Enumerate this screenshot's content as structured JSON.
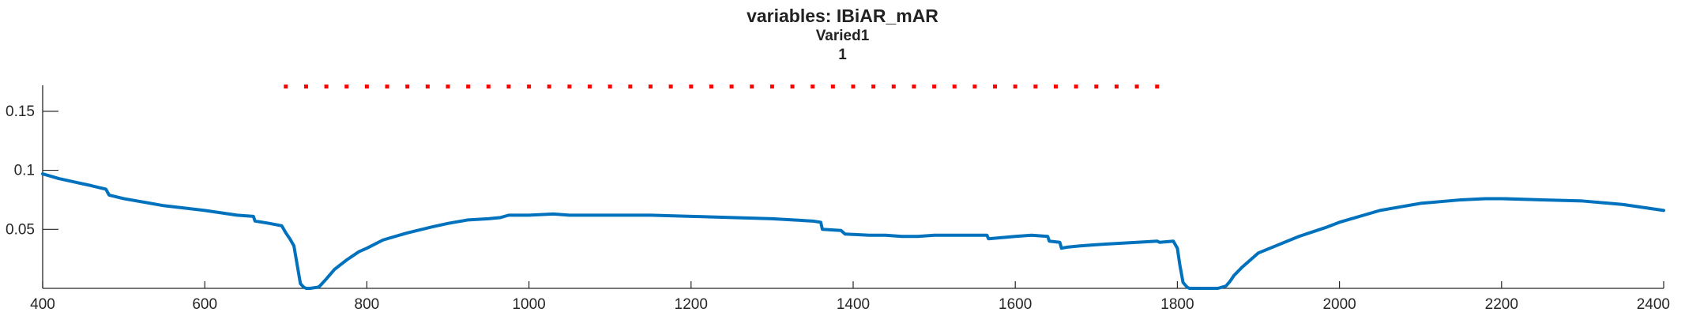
{
  "chart_data": {
    "type": "line",
    "title": "variables: IBiAR_mAR",
    "subtitle": "Varied1",
    "subtitle2": "1",
    "xlabel": "",
    "ylabel": "",
    "xlim": [
      400,
      2400
    ],
    "ylim": [
      0,
      0.172
    ],
    "xticks": [
      400,
      600,
      800,
      1000,
      1200,
      1400,
      1600,
      1800,
      2000,
      2200,
      2400
    ],
    "yticks": [
      0.05,
      0.1,
      0.15
    ],
    "ytick_labels": [
      "0.05",
      "0.1",
      "0.15"
    ],
    "grid": false,
    "colors": {
      "line": "#0072BD",
      "markers": "#FF0000",
      "axis": "#262626"
    },
    "series": [
      {
        "style": "line",
        "x": [
          400,
          420,
          440,
          460,
          478,
          482,
          500,
          550,
          600,
          640,
          660,
          662,
          680,
          695,
          700,
          705,
          710,
          712,
          718,
          722,
          725,
          730,
          740,
          742,
          750,
          760,
          775,
          790,
          800,
          820,
          850,
          880,
          900,
          925,
          950,
          965,
          975,
          1000,
          1030,
          1050,
          1100,
          1150,
          1200,
          1250,
          1300,
          1350,
          1360,
          1362,
          1385,
          1390,
          1420,
          1440,
          1460,
          1480,
          1500,
          1550,
          1565,
          1567,
          1600,
          1620,
          1640,
          1642,
          1655,
          1657,
          1665,
          1680,
          1700,
          1750,
          1775,
          1778,
          1795,
          1800,
          1803,
          1807,
          1812,
          1815,
          1830,
          1850,
          1860,
          1865,
          1870,
          1880,
          1900,
          1950,
          1985,
          2000,
          2050,
          2100,
          2150,
          2180,
          2200,
          2250,
          2300,
          2350,
          2400
        ],
        "y": [
          0.097,
          0.093,
          0.09,
          0.087,
          0.084,
          0.079,
          0.076,
          0.07,
          0.066,
          0.062,
          0.061,
          0.057,
          0.055,
          0.053,
          0.047,
          0.042,
          0.036,
          0.028,
          0.004,
          0.001,
          0.0,
          0.0,
          0.001,
          0.002,
          0.008,
          0.016,
          0.024,
          0.031,
          0.034,
          0.041,
          0.047,
          0.052,
          0.055,
          0.058,
          0.059,
          0.06,
          0.062,
          0.062,
          0.063,
          0.062,
          0.062,
          0.062,
          0.061,
          0.06,
          0.059,
          0.057,
          0.056,
          0.05,
          0.049,
          0.046,
          0.045,
          0.045,
          0.044,
          0.044,
          0.045,
          0.045,
          0.045,
          0.042,
          0.044,
          0.045,
          0.044,
          0.04,
          0.039,
          0.034,
          0.035,
          0.036,
          0.037,
          0.039,
          0.04,
          0.039,
          0.04,
          0.034,
          0.02,
          0.005,
          0.001,
          0.0,
          0.0,
          0.0,
          0.002,
          0.006,
          0.011,
          0.018,
          0.03,
          0.044,
          0.052,
          0.056,
          0.066,
          0.072,
          0.075,
          0.076,
          0.076,
          0.075,
          0.074,
          0.071,
          0.066
        ]
      },
      {
        "style": "dotted-markers",
        "x_start": 700,
        "x_end": 1780,
        "x_step": 25,
        "y": 0.171
      }
    ]
  }
}
